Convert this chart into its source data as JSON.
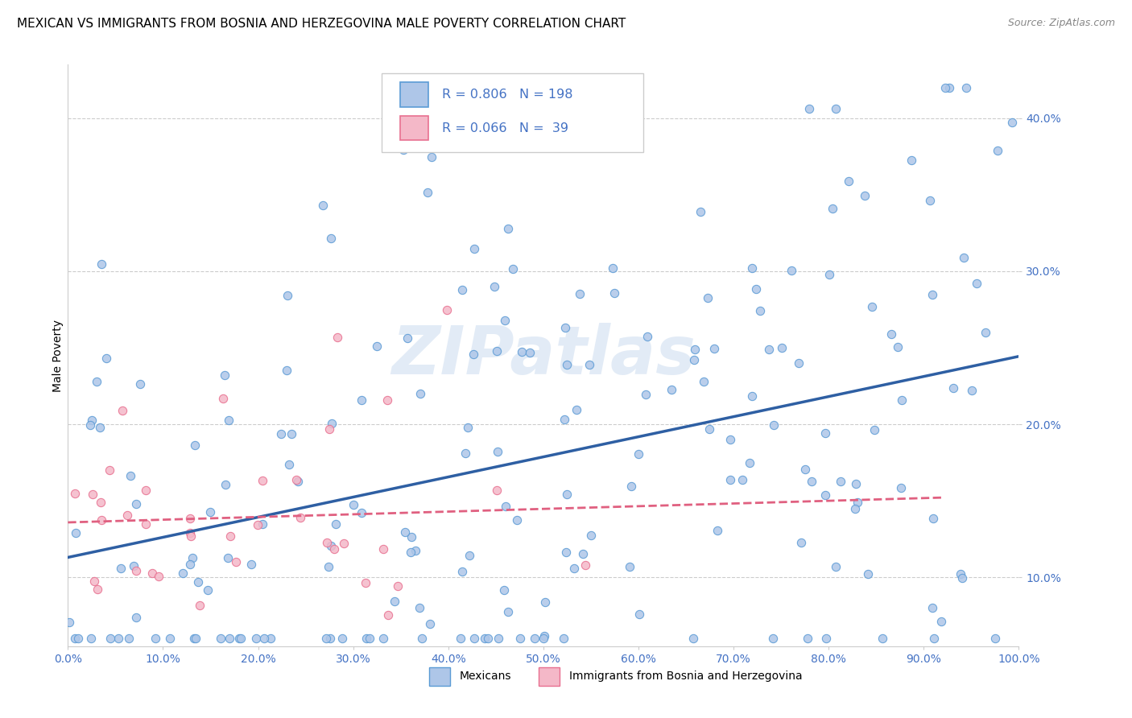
{
  "title": "MEXICAN VS IMMIGRANTS FROM BOSNIA AND HERZEGOVINA MALE POVERTY CORRELATION CHART",
  "source": "Source: ZipAtlas.com",
  "ylabel": "Male Poverty",
  "xlim": [
    0.0,
    1.0
  ],
  "ylim": [
    0.055,
    0.435
  ],
  "x_ticks": [
    0.0,
    0.1,
    0.2,
    0.3,
    0.4,
    0.5,
    0.6,
    0.7,
    0.8,
    0.9,
    1.0
  ],
  "y_ticks": [
    0.1,
    0.2,
    0.3,
    0.4
  ],
  "y_tick_labels": [
    "10.0%",
    "20.0%",
    "30.0%",
    "40.0%"
  ],
  "x_tick_labels": [
    "0.0%",
    "",
    "10.0%",
    "",
    "20.0%",
    "",
    "30.0%",
    "",
    "40.0%",
    "",
    "50.0%",
    "",
    "60.0%",
    "",
    "70.0%",
    "",
    "80.0%",
    "",
    "90.0%",
    "",
    "100.0%"
  ],
  "x_tick_labels_show": [
    "0.0%",
    "10.0%",
    "20.0%",
    "30.0%",
    "40.0%",
    "50.0%",
    "60.0%",
    "70.0%",
    "80.0%",
    "90.0%",
    "100.0%"
  ],
  "mexican_color": "#aec6e8",
  "bosnian_color": "#f4b8c8",
  "mexican_edge": "#5b9bd5",
  "bosnian_edge": "#e87090",
  "line_mexican_color": "#2e5fa3",
  "line_bosnian_color": "#e06080",
  "R_mexican": 0.806,
  "N_mexican": 198,
  "R_bosnian": 0.066,
  "N_bosnian": 39,
  "legend_labels": [
    "Mexicans",
    "Immigrants from Bosnia and Herzegovina"
  ],
  "watermark": "ZIPatlas",
  "background_color": "#ffffff",
  "grid_color": "#cccccc",
  "title_fontsize": 11,
  "axis_label_fontsize": 10,
  "tick_fontsize": 10,
  "tick_color": "#4472c4",
  "legend_box_color_mexican": "#aec6e8",
  "legend_box_color_bosnian": "#f4b8c8",
  "legend_box_edge_mexican": "#5b9bd5",
  "legend_box_edge_bosnian": "#e87090"
}
